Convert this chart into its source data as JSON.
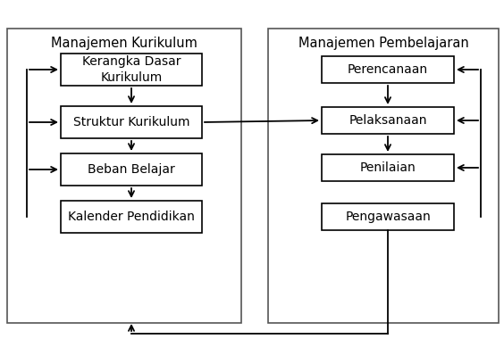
{
  "left_title": "Manajemen Kurikulum",
  "right_title": "Manajemen Pembelajaran",
  "left_boxes": [
    "Kerangka Dasar\nKurikulum",
    "Struktur Kurikulum",
    "Beban Belajar",
    "Kalender Pendidikan"
  ],
  "right_boxes": [
    "Perencanaan",
    "Pelaksanaan",
    "Penilaian",
    "Pengawasaan"
  ],
  "bg_color": "#ffffff",
  "box_color": "#ffffff",
  "box_edge": "#000000",
  "text_color": "#000000",
  "arrow_color": "#000000",
  "panel_edge": "#555555",
  "figsize": [
    5.64,
    3.8
  ],
  "dpi": 100
}
